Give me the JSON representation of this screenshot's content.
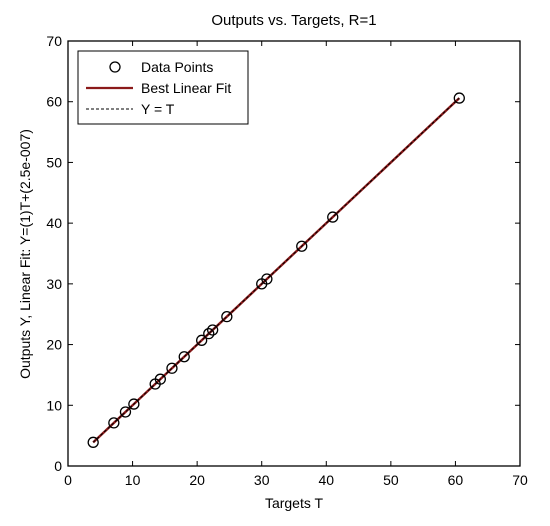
{
  "chart_data": {
    "type": "scatter",
    "title": "Outputs vs. Targets, R=1",
    "xlabel": "Targets T",
    "ylabel": "Outputs Y,  Linear Fit: Y=(1)T+(2.5e-007)",
    "xlim": [
      0,
      70
    ],
    "ylim": [
      0,
      70
    ],
    "x_ticks": [
      "0",
      "10",
      "20",
      "30",
      "40",
      "50",
      "60",
      "70"
    ],
    "y_ticks": [
      "0",
      "10",
      "20",
      "30",
      "40",
      "50",
      "60",
      "70"
    ],
    "grid": false,
    "legend_position": "top-left",
    "legend": [
      "Data Points",
      "Best Linear Fit",
      "Y = T"
    ],
    "series": [
      {
        "name": "Data Points",
        "kind": "points",
        "marker": "circle",
        "color": "#000000",
        "x": [
          3.9,
          7.1,
          8.9,
          10.2,
          13.5,
          14.3,
          16.1,
          18.0,
          20.7,
          21.8,
          22.4,
          24.6,
          30.0,
          30.8,
          36.2,
          41.0,
          60.6
        ],
        "y": [
          3.9,
          7.1,
          8.9,
          10.2,
          13.5,
          14.3,
          16.1,
          18.0,
          20.7,
          21.8,
          22.4,
          24.6,
          30.0,
          30.8,
          36.2,
          41.0,
          60.6
        ]
      },
      {
        "name": "Best Linear Fit",
        "kind": "line",
        "color": "#8b1a1a",
        "x": [
          3.9,
          60.6
        ],
        "y": [
          3.9,
          60.6
        ]
      },
      {
        "name": "Y = T",
        "kind": "dashed-line",
        "color": "#000000",
        "x": [
          3.9,
          60.6
        ],
        "y": [
          3.9,
          60.6
        ]
      }
    ]
  }
}
